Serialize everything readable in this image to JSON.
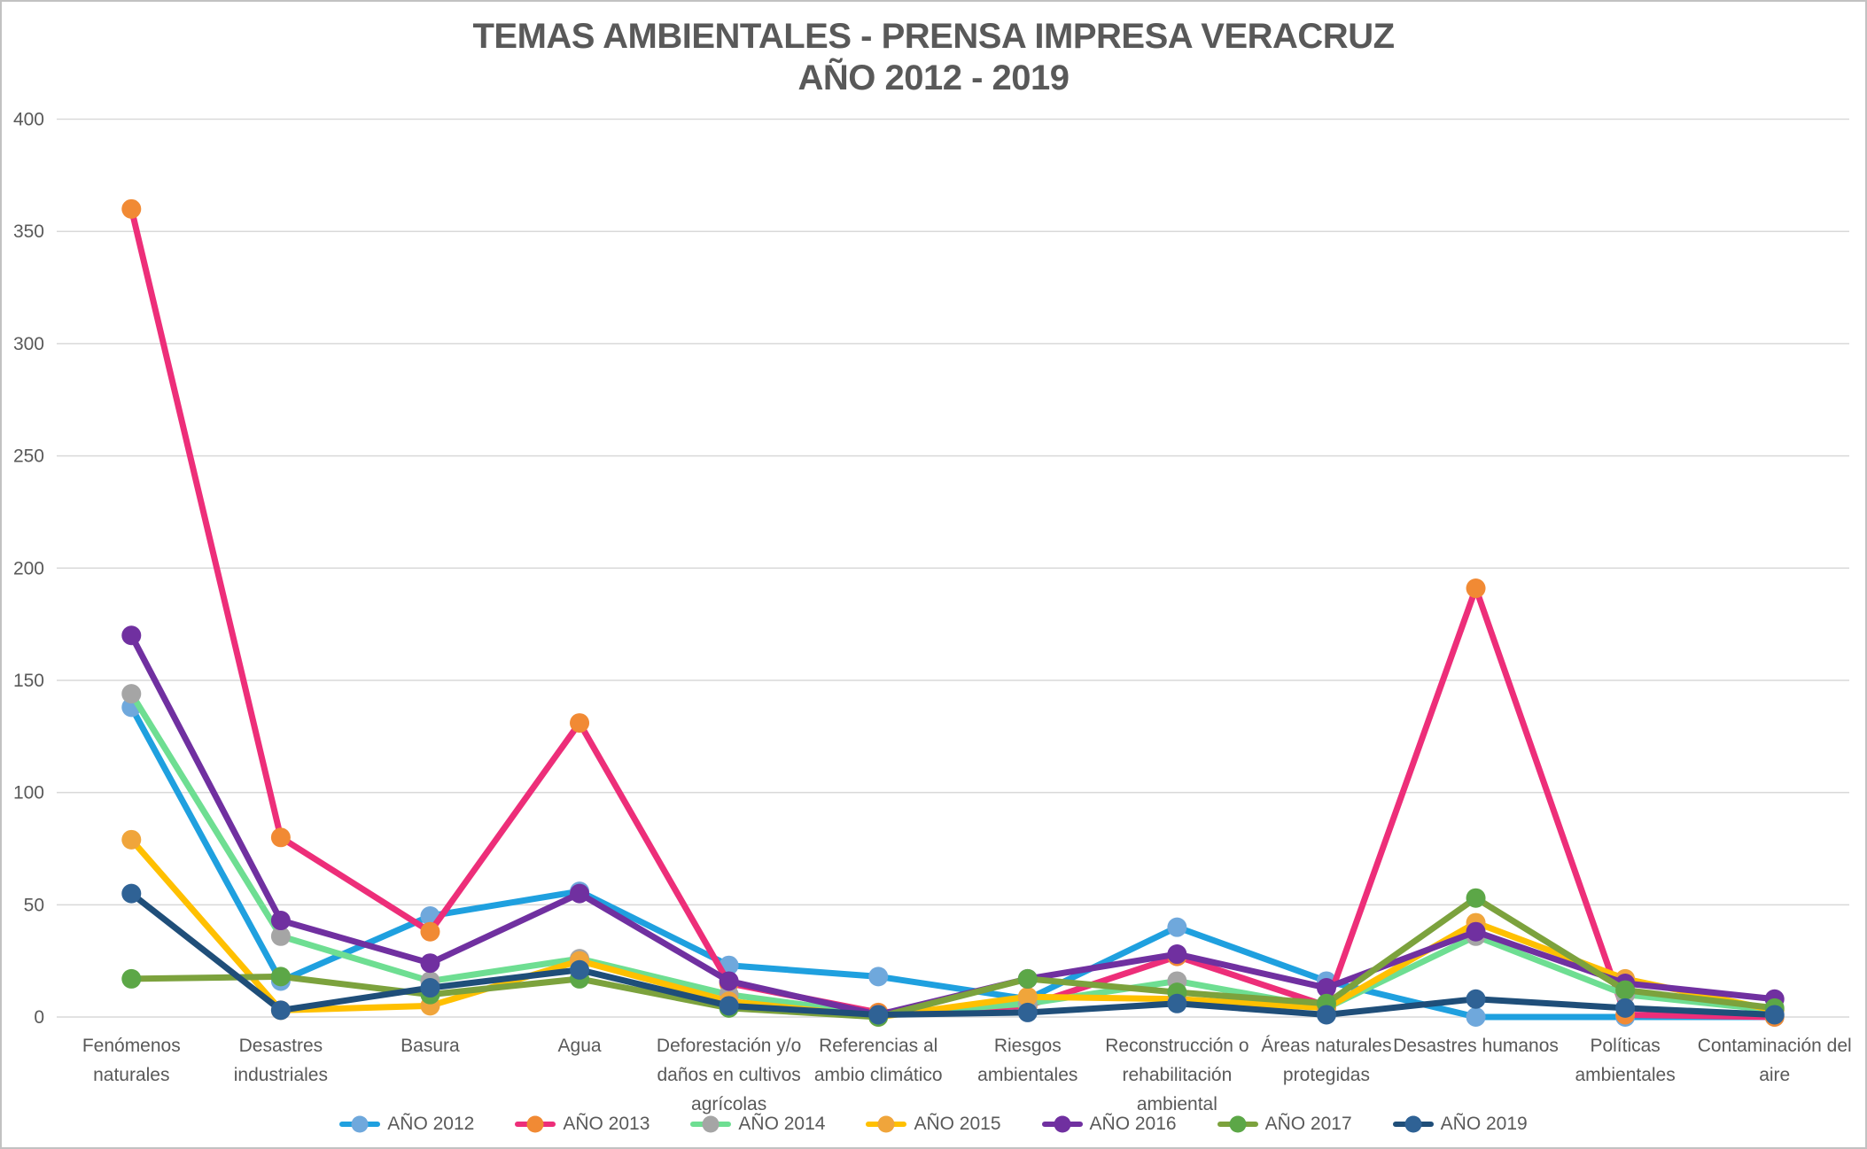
{
  "title": {
    "line1": "TEMAS AMBIENTALES - PRENSA IMPRESA VERACRUZ",
    "line2": "AÑO 2012 - 2019"
  },
  "colors": {
    "background": "#FFFFFF",
    "border": "#C2C2C2",
    "gridline": "#D9D9D9",
    "axis_text": "#595959",
    "title_text": "#595959"
  },
  "chart_data": {
    "type": "line",
    "title": "TEMAS AMBIENTALES - PRENSA IMPRESA VERACRUZ AÑO 2012 - 2019",
    "xlabel": "",
    "ylabel": "",
    "ylim": [
      0,
      400
    ],
    "y_ticks": [
      0,
      50,
      100,
      150,
      200,
      250,
      300,
      350,
      400
    ],
    "grid": true,
    "legend_position": "bottom",
    "categories": [
      "Fenómenos naturales",
      "Desastres industriales",
      "Basura",
      "Agua",
      "Deforestación y/o daños en cultivos agrícolas",
      "Referencias al ambio climático",
      "Riesgos ambientales",
      "Reconstrucción o rehabilitación ambiental",
      "Áreas naturales protegidas",
      "Desastres humanos",
      "Políticas ambientales",
      "Contaminación del aire"
    ],
    "category_lines": [
      [
        "Fenómenos",
        "naturales"
      ],
      [
        "Desastres",
        "industriales"
      ],
      [
        "Basura"
      ],
      [
        "Agua"
      ],
      [
        "Deforestación y/o",
        "daños en cultivos",
        "agrícolas"
      ],
      [
        "Referencias al",
        "ambio climático"
      ],
      [
        "Riesgos",
        "ambientales"
      ],
      [
        "Reconstrucción o",
        "rehabilitación",
        "ambiental"
      ],
      [
        "Áreas naturales",
        "protegidas"
      ],
      [
        "Desastres humanos"
      ],
      [
        "Políticas",
        "ambientales"
      ],
      [
        "Contaminación del",
        "aire"
      ]
    ],
    "series": [
      {
        "name": "AÑO 2012",
        "line_color": "#1FA0DF",
        "marker_color": "#6FA8DC",
        "values": [
          138,
          16,
          45,
          56,
          23,
          18,
          8,
          40,
          16,
          0,
          0,
          0
        ]
      },
      {
        "name": "AÑO 2013",
        "line_color": "#ED2E79",
        "marker_color": "#F18A34",
        "values": [
          360,
          80,
          38,
          131,
          15,
          2,
          5,
          27,
          5,
          191,
          1,
          0
        ]
      },
      {
        "name": "AÑO 2014",
        "line_color": "#6EDE92",
        "marker_color": "#A5A5A5",
        "values": [
          144,
          36,
          16,
          26,
          10,
          1,
          6,
          16,
          4,
          36,
          10,
          3
        ]
      },
      {
        "name": "AÑO 2015",
        "line_color": "#FFC000",
        "marker_color": "#F0A53B",
        "values": [
          79,
          3,
          5,
          25,
          7,
          0,
          9,
          8,
          4,
          42,
          17,
          3
        ]
      },
      {
        "name": "AÑO 2016",
        "line_color": "#7030A0",
        "marker_color": "#7030A0",
        "values": [
          170,
          43,
          24,
          55,
          16,
          1,
          17,
          28,
          13,
          38,
          15,
          8
        ]
      },
      {
        "name": "AÑO 2017",
        "line_color": "#7CA23D",
        "marker_color": "#5CA747",
        "values": [
          17,
          18,
          10,
          17,
          4,
          0,
          17,
          11,
          6,
          53,
          12,
          4
        ]
      },
      {
        "name": "AÑO 2019",
        "line_color": "#1F4E79",
        "marker_color": "#2F6295",
        "values": [
          55,
          3,
          13,
          21,
          5,
          1,
          2,
          6,
          1,
          8,
          4,
          1
        ]
      }
    ]
  }
}
